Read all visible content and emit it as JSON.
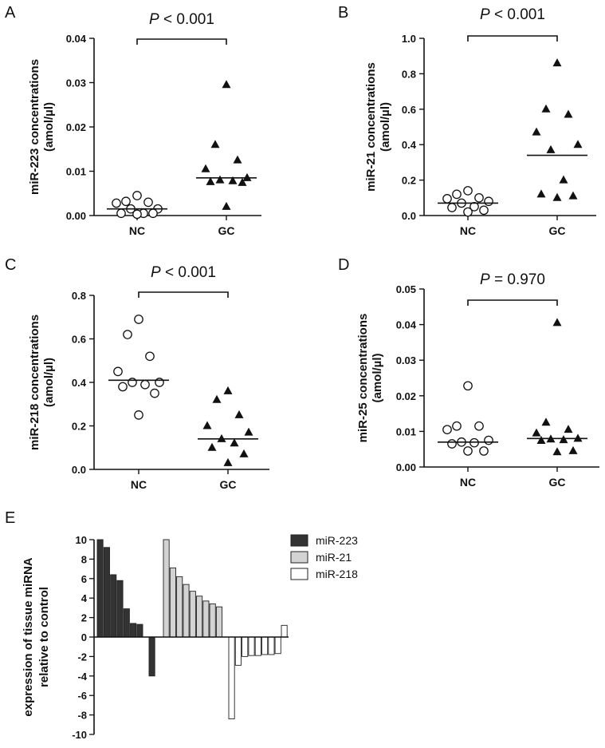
{
  "chart_data": [
    {
      "panel": "A",
      "type": "scatter",
      "ylabel": [
        "miR-223 concentrations",
        "(amol/µl)"
      ],
      "ylim": [
        0,
        0.04
      ],
      "yticks": [
        "0.00",
        "0.01",
        "0.02",
        "0.03",
        "0.04"
      ],
      "tick_values": [
        0,
        0.01,
        0.02,
        0.03,
        0.04
      ],
      "categories": [
        "NC",
        "GC"
      ],
      "pvalue": {
        "prefix": "P",
        "text": " < 0.001"
      },
      "groups": [
        {
          "name": "NC",
          "marker": "circle",
          "median": 0.0015,
          "points": [
            0.0045,
            0.0032,
            0.003,
            0.0028,
            0.0015,
            0.0015,
            0.0005,
            0.0005,
            0.0005,
            0.0003
          ]
        },
        {
          "name": "GC",
          "marker": "triangle",
          "median": 0.0085,
          "points": [
            0.0295,
            0.016,
            0.0125,
            0.0105,
            0.0085,
            0.008,
            0.0078,
            0.0076,
            0.0074,
            0.002
          ]
        }
      ]
    },
    {
      "panel": "B",
      "type": "scatter",
      "ylabel": [
        "miR-21 concentrations",
        "(amol/µl)"
      ],
      "ylim": [
        0,
        1.0
      ],
      "yticks": [
        "0.0",
        "0.2",
        "0.4",
        "0.6",
        "0.8",
        "1.0"
      ],
      "tick_values": [
        0,
        0.2,
        0.4,
        0.6,
        0.8,
        1.0
      ],
      "categories": [
        "NC",
        "GC"
      ],
      "pvalue": {
        "prefix": "P",
        "text": " < 0.001"
      },
      "groups": [
        {
          "name": "NC",
          "marker": "circle",
          "median": 0.07,
          "points": [
            0.14,
            0.12,
            0.1,
            0.095,
            0.08,
            0.07,
            0.05,
            0.045,
            0.03,
            0.02
          ]
        },
        {
          "name": "GC",
          "marker": "triangle",
          "median": 0.34,
          "points": [
            0.86,
            0.6,
            0.57,
            0.47,
            0.4,
            0.37,
            0.2,
            0.12,
            0.11,
            0.1
          ]
        }
      ]
    },
    {
      "panel": "C",
      "type": "scatter",
      "ylabel": [
        "miR-218 concentrations",
        "(amol/µl)"
      ],
      "ylim": [
        0,
        0.8
      ],
      "yticks": [
        "0.0",
        "0.2",
        "0.4",
        "0.6",
        "0.8"
      ],
      "tick_values": [
        0,
        0.2,
        0.4,
        0.6,
        0.8
      ],
      "categories": [
        "NC",
        "GC"
      ],
      "pvalue": {
        "prefix": "P",
        "text": " < 0.001"
      },
      "groups": [
        {
          "name": "NC",
          "marker": "circle",
          "median": 0.41,
          "points": [
            0.69,
            0.62,
            0.52,
            0.45,
            0.4,
            0.4,
            0.39,
            0.38,
            0.35,
            0.25
          ]
        },
        {
          "name": "GC",
          "marker": "triangle",
          "median": 0.14,
          "points": [
            0.36,
            0.32,
            0.25,
            0.2,
            0.17,
            0.14,
            0.12,
            0.1,
            0.07,
            0.03
          ]
        }
      ]
    },
    {
      "panel": "D",
      "type": "scatter",
      "ylabel": [
        "miR-25 concentrations",
        "(amol/µl)"
      ],
      "ylim": [
        0,
        0.05
      ],
      "yticks": [
        "0.00",
        "0.01",
        "0.02",
        "0.03",
        "0.04",
        "0.05"
      ],
      "tick_values": [
        0,
        0.01,
        0.02,
        0.03,
        0.04,
        0.05
      ],
      "categories": [
        "NC",
        "GC"
      ],
      "pvalue": {
        "prefix": "P",
        "text": " = 0.970"
      },
      "groups": [
        {
          "name": "NC",
          "marker": "circle",
          "median": 0.007,
          "points": [
            0.0228,
            0.0115,
            0.0115,
            0.0105,
            0.0075,
            0.007,
            0.0068,
            0.0065,
            0.0045,
            0.0045
          ]
        },
        {
          "name": "GC",
          "marker": "triangle",
          "median": 0.008,
          "points": [
            0.0405,
            0.0125,
            0.0105,
            0.0095,
            0.008,
            0.0078,
            0.0076,
            0.0074,
            0.0045,
            0.0042
          ]
        }
      ]
    },
    {
      "panel": "E",
      "type": "bar",
      "ylabel": [
        "expression of tissue miRNA",
        "relative to control"
      ],
      "ylim": [
        -10,
        10
      ],
      "yticks": [
        "-10",
        "-8",
        "-6",
        "-4",
        "-2",
        "0",
        "2",
        "4",
        "6",
        "8",
        "10"
      ],
      "tick_values": [
        -10,
        -8,
        -6,
        -4,
        -2,
        0,
        2,
        4,
        6,
        8,
        10
      ],
      "series": [
        {
          "name": "miR-223",
          "color": "#333333",
          "values": [
            10,
            9.2,
            6.4,
            5.8,
            2.9,
            1.4,
            1.3,
            -4.0
          ]
        },
        {
          "name": "miR-21",
          "color": "#d3d3d3",
          "values": [
            10,
            7.1,
            6.2,
            5.4,
            4.7,
            4.2,
            3.7,
            3.4,
            3.1
          ]
        },
        {
          "name": "miR-218",
          "color": "#ffffff",
          "values": [
            -8.4,
            -2.9,
            -2.0,
            -1.9,
            -1.9,
            -1.8,
            -1.8,
            -1.7,
            0,
            1.2
          ]
        }
      ]
    }
  ]
}
